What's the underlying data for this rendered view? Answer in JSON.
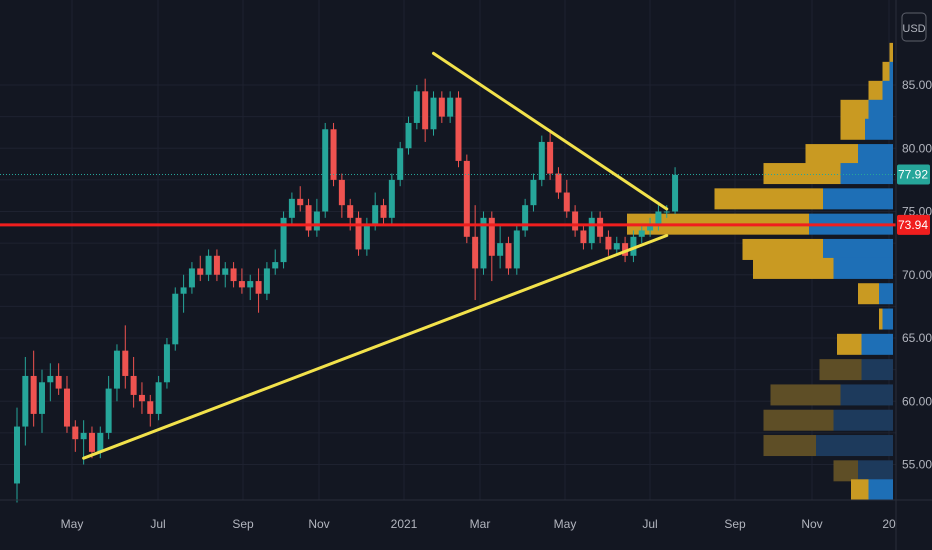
{
  "currency": "USD",
  "colors": {
    "background": "#131722",
    "grid": "#1e2230",
    "up": "#26a69a",
    "down": "#ef5350",
    "trendline": "#f2e24b",
    "level": "#f01e1e",
    "current_price_tag": "#26a69a",
    "level_tag": "#f01e1e",
    "vp_up": "#1e6fb6",
    "vp_down": "#c99a22",
    "vp_up_dim": "#1d3a5c",
    "vp_down_dim": "#5e4e26"
  },
  "price_tags": {
    "current": "77.92",
    "level": "73.94"
  },
  "chart_data": {
    "type": "candlestick",
    "title": "",
    "x_ticks": [
      "May",
      "Jul",
      "Sep",
      "Nov",
      "2021",
      "Mar",
      "May",
      "Jul",
      "Sep",
      "Nov",
      "20"
    ],
    "y_ticks": [
      "55.00",
      "60.00",
      "65.00",
      "70.00",
      "75.00",
      "80.00",
      "85.00"
    ],
    "ylim": [
      52.5,
      88
    ],
    "grid": true,
    "current_price": 77.92,
    "horizontal_level": 73.94,
    "candles": [
      {
        "o": 53.5,
        "h": 59.5,
        "l": 52.0,
        "c": 58.0
      },
      {
        "o": 58.0,
        "h": 63.5,
        "l": 56.5,
        "c": 62.0
      },
      {
        "o": 62.0,
        "h": 64.0,
        "l": 58.0,
        "c": 59.0
      },
      {
        "o": 59.0,
        "h": 62.5,
        "l": 57.5,
        "c": 61.5
      },
      {
        "o": 61.5,
        "h": 63.0,
        "l": 60.0,
        "c": 62.0
      },
      {
        "o": 62.0,
        "h": 63.0,
        "l": 60.5,
        "c": 61.0
      },
      {
        "o": 61.0,
        "h": 62.0,
        "l": 57.5,
        "c": 58.0
      },
      {
        "o": 58.0,
        "h": 58.5,
        "l": 56.0,
        "c": 57.0
      },
      {
        "o": 57.0,
        "h": 58.5,
        "l": 55.0,
        "c": 57.5
      },
      {
        "o": 57.5,
        "h": 58.0,
        "l": 55.5,
        "c": 56.0
      },
      {
        "o": 56.0,
        "h": 58.0,
        "l": 55.5,
        "c": 57.5
      },
      {
        "o": 57.5,
        "h": 62.0,
        "l": 57.0,
        "c": 61.0
      },
      {
        "o": 61.0,
        "h": 64.5,
        "l": 60.0,
        "c": 64.0
      },
      {
        "o": 64.0,
        "h": 66.0,
        "l": 61.0,
        "c": 62.0
      },
      {
        "o": 62.0,
        "h": 63.5,
        "l": 59.5,
        "c": 60.5
      },
      {
        "o": 60.5,
        "h": 61.5,
        "l": 59.0,
        "c": 60.0
      },
      {
        "o": 60.0,
        "h": 60.5,
        "l": 58.0,
        "c": 59.0
      },
      {
        "o": 59.0,
        "h": 62.0,
        "l": 58.5,
        "c": 61.5
      },
      {
        "o": 61.5,
        "h": 65.0,
        "l": 61.0,
        "c": 64.5
      },
      {
        "o": 64.5,
        "h": 69.0,
        "l": 64.0,
        "c": 68.5
      },
      {
        "o": 68.5,
        "h": 70.0,
        "l": 67.0,
        "c": 69.0
      },
      {
        "o": 69.0,
        "h": 71.0,
        "l": 68.5,
        "c": 70.5
      },
      {
        "o": 70.5,
        "h": 71.5,
        "l": 69.5,
        "c": 70.0
      },
      {
        "o": 70.0,
        "h": 72.0,
        "l": 69.5,
        "c": 71.5
      },
      {
        "o": 71.5,
        "h": 72.0,
        "l": 69.5,
        "c": 70.0
      },
      {
        "o": 70.0,
        "h": 71.0,
        "l": 69.0,
        "c": 70.5
      },
      {
        "o": 70.5,
        "h": 71.0,
        "l": 69.0,
        "c": 69.5
      },
      {
        "o": 69.5,
        "h": 70.5,
        "l": 68.5,
        "c": 69.0
      },
      {
        "o": 69.0,
        "h": 70.0,
        "l": 68.0,
        "c": 69.5
      },
      {
        "o": 69.5,
        "h": 70.5,
        "l": 67.0,
        "c": 68.5
      },
      {
        "o": 68.5,
        "h": 71.0,
        "l": 68.0,
        "c": 70.5
      },
      {
        "o": 70.5,
        "h": 72.0,
        "l": 70.0,
        "c": 71.0
      },
      {
        "o": 71.0,
        "h": 75.0,
        "l": 70.5,
        "c": 74.5
      },
      {
        "o": 74.5,
        "h": 76.5,
        "l": 74.0,
        "c": 76.0
      },
      {
        "o": 76.0,
        "h": 77.0,
        "l": 75.0,
        "c": 75.5
      },
      {
        "o": 75.5,
        "h": 76.0,
        "l": 73.0,
        "c": 73.5
      },
      {
        "o": 73.5,
        "h": 76.0,
        "l": 73.0,
        "c": 75.0
      },
      {
        "o": 75.0,
        "h": 82.0,
        "l": 74.5,
        "c": 81.5
      },
      {
        "o": 81.5,
        "h": 82.0,
        "l": 77.0,
        "c": 77.5
      },
      {
        "o": 77.5,
        "h": 78.0,
        "l": 74.5,
        "c": 75.5
      },
      {
        "o": 75.5,
        "h": 76.0,
        "l": 73.5,
        "c": 74.5
      },
      {
        "o": 74.5,
        "h": 75.0,
        "l": 71.5,
        "c": 72.0
      },
      {
        "o": 72.0,
        "h": 74.5,
        "l": 71.5,
        "c": 74.0
      },
      {
        "o": 74.0,
        "h": 76.5,
        "l": 73.5,
        "c": 75.5
      },
      {
        "o": 75.5,
        "h": 76.0,
        "l": 74.0,
        "c": 74.5
      },
      {
        "o": 74.5,
        "h": 78.0,
        "l": 74.0,
        "c": 77.5
      },
      {
        "o": 77.5,
        "h": 80.5,
        "l": 77.0,
        "c": 80.0
      },
      {
        "o": 80.0,
        "h": 82.5,
        "l": 79.5,
        "c": 82.0
      },
      {
        "o": 82.0,
        "h": 85.0,
        "l": 81.5,
        "c": 84.5
      },
      {
        "o": 84.5,
        "h": 85.5,
        "l": 80.5,
        "c": 81.5
      },
      {
        "o": 81.5,
        "h": 84.5,
        "l": 81.0,
        "c": 84.0
      },
      {
        "o": 84.0,
        "h": 84.5,
        "l": 82.0,
        "c": 82.5
      },
      {
        "o": 82.5,
        "h": 84.5,
        "l": 82.0,
        "c": 84.0
      },
      {
        "o": 84.0,
        "h": 84.5,
        "l": 78.5,
        "c": 79.0
      },
      {
        "o": 79.0,
        "h": 79.5,
        "l": 72.5,
        "c": 73.0
      },
      {
        "o": 73.0,
        "h": 75.5,
        "l": 68.0,
        "c": 70.5
      },
      {
        "o": 70.5,
        "h": 75.0,
        "l": 70.0,
        "c": 74.5
      },
      {
        "o": 74.5,
        "h": 75.0,
        "l": 69.5,
        "c": 71.5
      },
      {
        "o": 71.5,
        "h": 74.0,
        "l": 70.5,
        "c": 72.5
      },
      {
        "o": 72.5,
        "h": 73.0,
        "l": 70.0,
        "c": 70.5
      },
      {
        "o": 70.5,
        "h": 74.0,
        "l": 70.0,
        "c": 73.5
      },
      {
        "o": 73.5,
        "h": 76.0,
        "l": 73.0,
        "c": 75.5
      },
      {
        "o": 75.5,
        "h": 78.0,
        "l": 75.0,
        "c": 77.5
      },
      {
        "o": 77.5,
        "h": 81.0,
        "l": 77.0,
        "c": 80.5
      },
      {
        "o": 80.5,
        "h": 81.5,
        "l": 77.5,
        "c": 78.0
      },
      {
        "o": 78.0,
        "h": 78.5,
        "l": 76.0,
        "c": 76.5
      },
      {
        "o": 76.5,
        "h": 77.5,
        "l": 74.5,
        "c": 75.0
      },
      {
        "o": 75.0,
        "h": 75.5,
        "l": 73.0,
        "c": 73.5
      },
      {
        "o": 73.5,
        "h": 74.0,
        "l": 72.0,
        "c": 72.5
      },
      {
        "o": 72.5,
        "h": 75.0,
        "l": 72.0,
        "c": 74.5
      },
      {
        "o": 74.5,
        "h": 75.0,
        "l": 72.5,
        "c": 73.0
      },
      {
        "o": 73.0,
        "h": 73.5,
        "l": 71.5,
        "c": 72.0
      },
      {
        "o": 72.0,
        "h": 73.0,
        "l": 71.5,
        "c": 72.5
      },
      {
        "o": 72.5,
        "h": 73.0,
        "l": 71.0,
        "c": 71.5
      },
      {
        "o": 71.5,
        "h": 73.5,
        "l": 71.0,
        "c": 73.0
      },
      {
        "o": 73.0,
        "h": 74.0,
        "l": 72.5,
        "c": 73.5
      },
      {
        "o": 73.5,
        "h": 74.5,
        "l": 73.0,
        "c": 74.0
      },
      {
        "o": 74.0,
        "h": 75.5,
        "l": 73.5,
        "c": 75.0
      },
      {
        "o": 75.0,
        "h": 75.5,
        "l": 74.5,
        "c": 75.0
      },
      {
        "o": 75.0,
        "h": 78.5,
        "l": 74.8,
        "c": 77.9
      }
    ],
    "trendlines": [
      {
        "name": "upper",
        "from": {
          "bar": 50,
          "price": 87.5
        },
        "to": {
          "bar": 78,
          "price": 75.2
        }
      },
      {
        "name": "lower",
        "from": {
          "bar": 8,
          "price": 55.5
        },
        "to": {
          "bar": 78,
          "price": 73.1
        }
      }
    ],
    "volume_profile": [
      {
        "price": 87.5,
        "up": 0,
        "down": 1
      },
      {
        "price": 86.0,
        "up": 1,
        "down": 2
      },
      {
        "price": 84.5,
        "up": 3,
        "down": 4
      },
      {
        "price": 83.0,
        "up": 7,
        "down": 8
      },
      {
        "price": 81.5,
        "up": 8,
        "down": 7
      },
      {
        "price": 79.5,
        "up": 10,
        "down": 15
      },
      {
        "price": 78.0,
        "up": 15,
        "down": 22
      },
      {
        "price": 76.0,
        "up": 20,
        "down": 31
      },
      {
        "price": 74.0,
        "up": 24,
        "down": 52
      },
      {
        "price": 72.0,
        "up": 20,
        "down": 23
      },
      {
        "price": 70.5,
        "up": 17,
        "down": 23
      },
      {
        "price": 68.5,
        "up": 4,
        "down": 6
      },
      {
        "price": 66.5,
        "up": 3,
        "down": 1
      },
      {
        "price": 64.5,
        "up": 9,
        "down": 7
      },
      {
        "price": 62.5,
        "up": 9,
        "down": 12
      },
      {
        "price": 60.5,
        "up": 15,
        "down": 20
      },
      {
        "price": 58.5,
        "up": 17,
        "down": 20
      },
      {
        "price": 56.5,
        "up": 22,
        "down": 15
      },
      {
        "price": 54.5,
        "up": 10,
        "down": 7
      },
      {
        "price": 53.0,
        "up": 7,
        "down": 5
      }
    ]
  }
}
